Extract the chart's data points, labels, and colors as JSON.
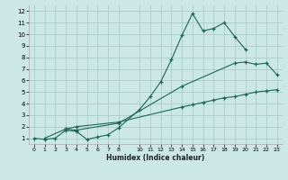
{
  "xlabel": "Humidex (Indice chaleur)",
  "bg_color": "#cce8e4",
  "grid_color": "#aacccc",
  "line_color": "#1a6655",
  "xlim": [
    -0.5,
    23.5
  ],
  "ylim": [
    0.5,
    12.5
  ],
  "xticks": [
    0,
    1,
    2,
    3,
    4,
    5,
    6,
    7,
    8,
    10,
    11,
    12,
    13,
    14,
    15,
    16,
    17,
    18,
    19,
    20,
    21,
    22,
    23
  ],
  "yticks": [
    1,
    2,
    3,
    4,
    5,
    6,
    7,
    8,
    9,
    10,
    11,
    12
  ],
  "curve1_x": [
    0,
    1,
    2,
    3,
    4,
    5,
    6,
    7,
    8,
    10,
    11,
    12,
    13,
    14,
    15,
    16,
    17,
    18,
    19,
    20
  ],
  "curve1_y": [
    1.0,
    0.9,
    1.0,
    1.7,
    1.6,
    0.9,
    1.1,
    1.3,
    1.9,
    3.5,
    4.6,
    5.9,
    7.8,
    9.9,
    11.8,
    10.3,
    10.5,
    11.0,
    9.8,
    8.7
  ],
  "curve2_x": [
    3,
    4,
    8,
    14,
    19,
    20,
    21,
    22,
    23
  ],
  "curve2_y": [
    1.8,
    1.7,
    2.3,
    5.5,
    7.5,
    7.6,
    7.4,
    7.5,
    6.5
  ],
  "curve3_x": [
    1,
    3,
    4,
    8,
    14,
    15,
    16,
    17,
    18,
    19,
    20,
    21,
    22,
    23
  ],
  "curve3_y": [
    1.0,
    1.8,
    2.0,
    2.4,
    3.7,
    3.9,
    4.1,
    4.3,
    4.5,
    4.6,
    4.8,
    5.0,
    5.1,
    5.2
  ]
}
